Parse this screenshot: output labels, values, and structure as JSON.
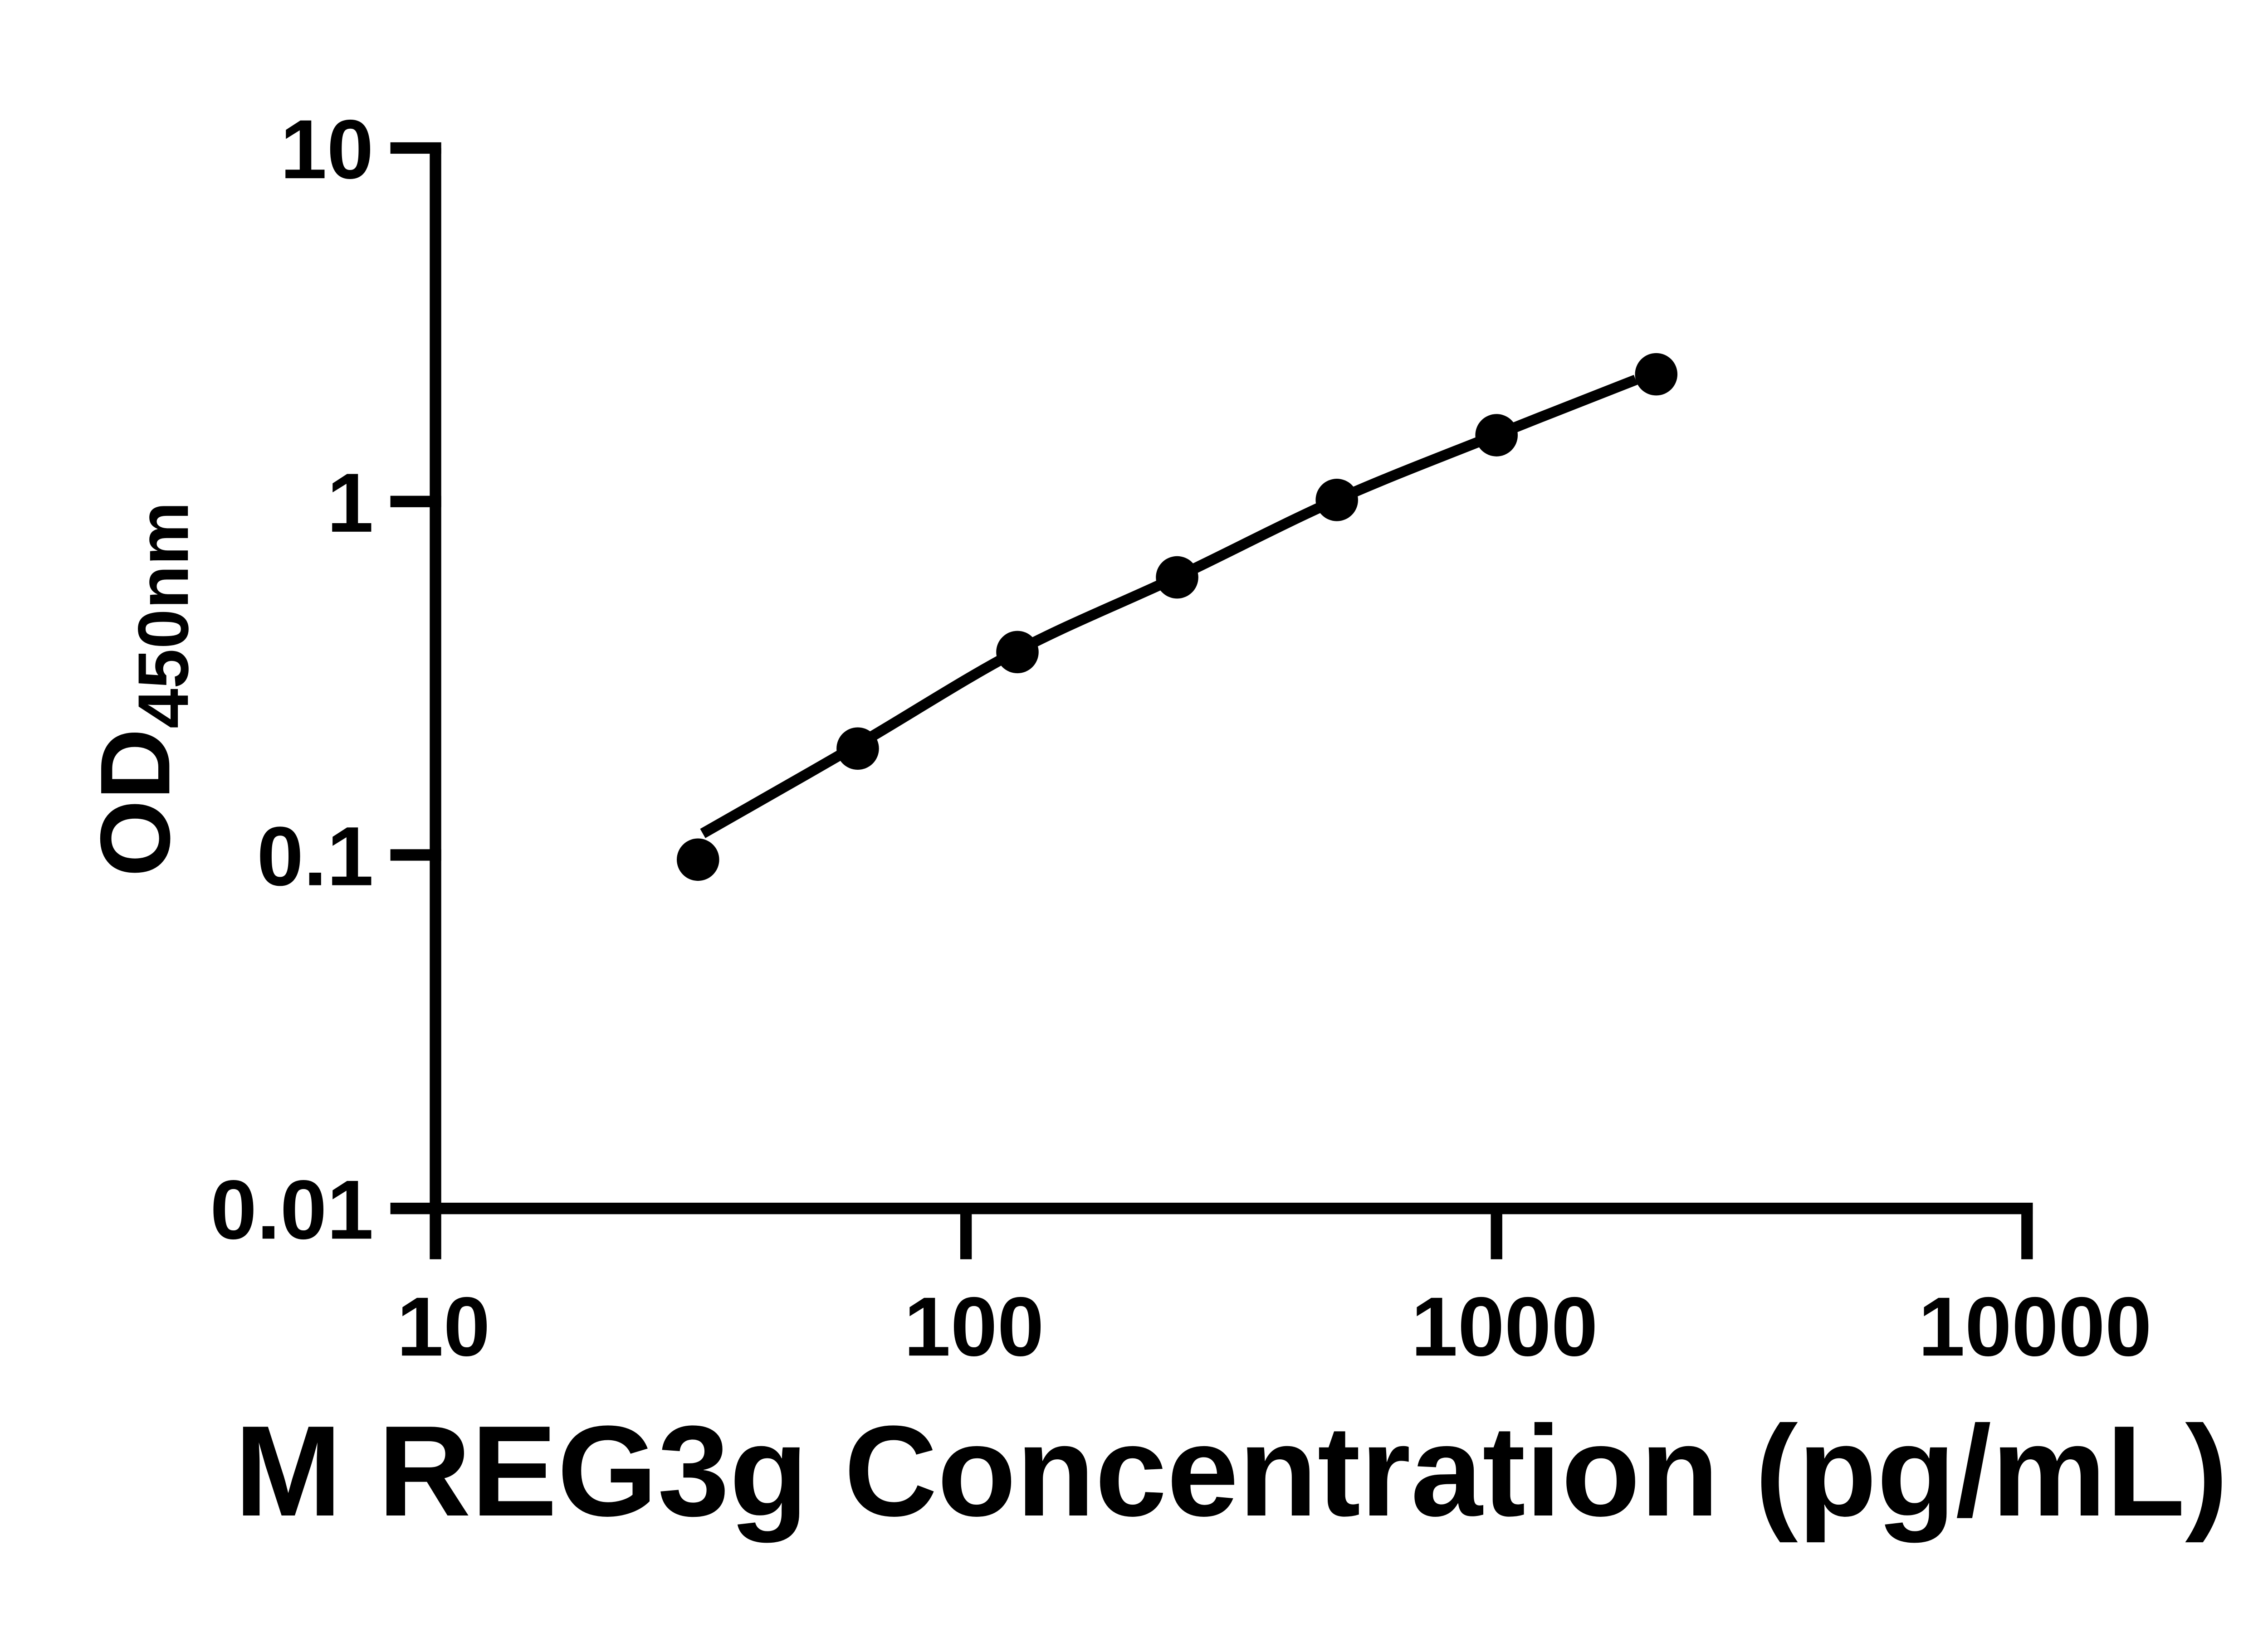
{
  "chart_data": {
    "type": "scatter",
    "title": "",
    "xlabel": "M REG3g Concentration (pg/mL)",
    "ylabel": "OD450nm",
    "ylabel_main": "OD",
    "ylabel_subscript": "450nm",
    "x_scale": "log10",
    "y_scale": "log10",
    "xlim": [
      10,
      10000
    ],
    "ylim": [
      0.01,
      10
    ],
    "x_ticks": [
      10,
      100,
      1000,
      10000
    ],
    "x_tick_labels": [
      "10",
      "100",
      "1000",
      "10000"
    ],
    "y_ticks": [
      10,
      1,
      0.1,
      0.01
    ],
    "y_tick_labels": [
      "10",
      "1",
      "0.1",
      "0.01"
    ],
    "grid": false,
    "legend": false,
    "series": [
      {
        "name": "M REG3g standard curve",
        "marker": "filled-circle",
        "color": "#000000",
        "points": [
          {
            "x": 31.25,
            "y": 0.097
          },
          {
            "x": 62.5,
            "y": 0.2
          },
          {
            "x": 125,
            "y": 0.375
          },
          {
            "x": 250,
            "y": 0.61
          },
          {
            "x": 500,
            "y": 1.01
          },
          {
            "x": 1000,
            "y": 1.54
          },
          {
            "x": 2000,
            "y": 2.29
          }
        ]
      }
    ],
    "fit_curve": {
      "name": "fitted standard curve",
      "color": "#000000",
      "points": [
        {
          "x": 31.9,
          "y": 0.115
        },
        {
          "x": 62.5,
          "y": 0.205
        },
        {
          "x": 125,
          "y": 0.378
        },
        {
          "x": 250,
          "y": 0.612
        },
        {
          "x": 500,
          "y": 1.012
        },
        {
          "x": 1000,
          "y": 1.545
        },
        {
          "x": 1830,
          "y": 2.21
        }
      ]
    }
  },
  "colors": {
    "background": "#ffffff",
    "foreground": "#000000"
  }
}
